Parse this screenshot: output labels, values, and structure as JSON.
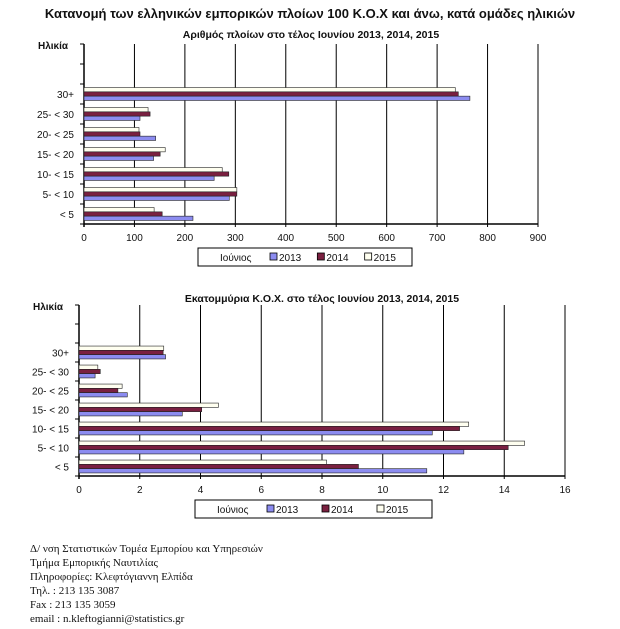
{
  "title": "Κατανομή των ελληνικών εμπορικών πλοίων 100 Κ.Ο.Χ και άνω, κατά ομάδες ηλικιών",
  "colors": {
    "2013": "#8c8cf0",
    "2014": "#7a2040",
    "2015": "#fffff0"
  },
  "chart_data": [
    {
      "type": "bar",
      "orientation": "horizontal",
      "title": "Αριθμός πλοίων στο τέλος Ιουνίου 2013, 2014, 2015",
      "ylabel": "Ηλικία",
      "xlim": [
        0,
        900
      ],
      "xticks": [
        0,
        100,
        200,
        300,
        400,
        500,
        600,
        700,
        800,
        900
      ],
      "grid": true,
      "categories": [
        "30+",
        "25- < 30",
        "20- < 25",
        "15- < 20",
        "10- < 15",
        "5- < 10",
        "<  5"
      ],
      "legend_title": "Ιούνιος",
      "legend": "bottom",
      "series": [
        {
          "name": "2013",
          "values": [
            765,
            111,
            142,
            138,
            258,
            288,
            216
          ]
        },
        {
          "name": "2014",
          "values": [
            742,
            131,
            111,
            151,
            287,
            303,
            155
          ]
        },
        {
          "name": "2015",
          "values": [
            736,
            127,
            109,
            161,
            274,
            303,
            139
          ]
        }
      ]
    },
    {
      "type": "bar",
      "orientation": "horizontal",
      "title": "Εκατομμύρια Κ.Ο.Χ. στο τέλος Ιουνίου 2013, 2014, 2015",
      "ylabel": "Ηλικία",
      "xlim": [
        0,
        16
      ],
      "xticks": [
        0,
        2,
        4,
        6,
        8,
        10,
        12,
        14,
        16
      ],
      "grid": true,
      "categories": [
        "30+",
        "25- < 30",
        "20- < 25",
        "15- < 20",
        "10- < 15",
        "5- < 10",
        "<  5"
      ],
      "legend_title": "Ιούνιος",
      "legend": "bottom",
      "series": [
        {
          "name": "2013",
          "values": [
            2.85,
            0.53,
            1.59,
            3.4,
            11.63,
            12.67,
            11.45
          ]
        },
        {
          "name": "2014",
          "values": [
            2.77,
            0.7,
            1.28,
            4.04,
            12.53,
            14.13,
            9.2
          ]
        },
        {
          "name": "2015",
          "values": [
            2.79,
            0.62,
            1.42,
            4.59,
            12.83,
            14.67,
            8.15
          ]
        }
      ]
    }
  ],
  "footer": [
    "Δ/ νση Στατιστικών Τομέα Εμπορίου και Υπηρεσιών",
    "Τμήμα Εμπορικής Ναυτιλίας",
    "Πληροφορίες: Κλεφτόγιαννη Ελπίδα",
    "Τηλ.   : 213 135 3087",
    "Fax    : 213 135 3059",
    "email : n.kleftogianni@statistics.gr"
  ]
}
